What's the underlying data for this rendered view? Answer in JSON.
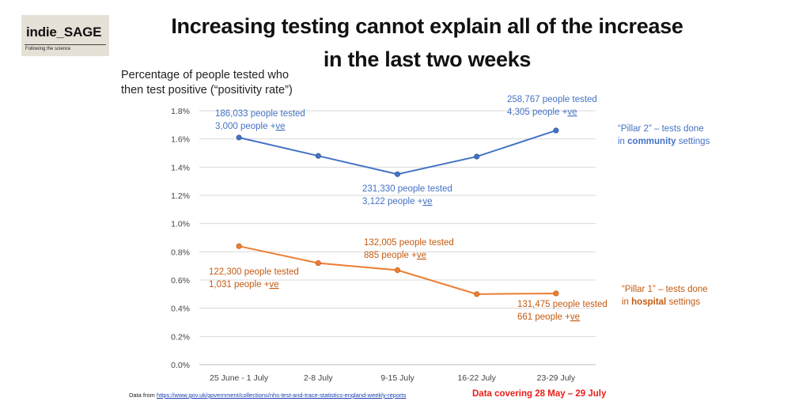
{
  "logo": {
    "name": "indie_SAGE",
    "tagline": "Following the science"
  },
  "title_line1": "Increasing testing cannot explain all of the increase",
  "title_line2": "in the last two weeks",
  "ylabel_line1": "Percentage of people tested who",
  "ylabel_line2": "then test positive (“positivity rate”)",
  "source_prefix": "Data from",
  "source_url": "https://www.gov.uk/government/collections/nhs-test-and-trace-statistics-england-weekly-reports",
  "coverage": "Data covering 28 May – 29 July",
  "colors": {
    "pillar2": "#4472c4",
    "pillar1": "#ed7d31",
    "pillar1_text": "#c55a11",
    "red": "#e8201a"
  },
  "chart_data": {
    "type": "line",
    "categories": [
      "25 June - 1 July",
      "2-8 July",
      "9-15 July",
      "16-22 July",
      "23-29 July"
    ],
    "ylim": [
      0,
      1.8
    ],
    "yticks": [
      "0.0%",
      "0.2%",
      "0.4%",
      "0.6%",
      "0.8%",
      "1.0%",
      "1.2%",
      "1.4%",
      "1.6%",
      "1.8%"
    ],
    "grid": true,
    "series": [
      {
        "key": "pillar2",
        "values": [
          1.61,
          1.48,
          1.35,
          1.475,
          1.66
        ],
        "label_part1": "“Pillar 2” – tests done",
        "label_part2": "in ",
        "label_bold": "community",
        "label_part3": " settings"
      },
      {
        "key": "pillar1",
        "values": [
          0.84,
          0.72,
          0.67,
          0.5,
          0.505
        ],
        "label_part1": "“Pillar 1” – tests done",
        "label_part2": "in ",
        "label_bold": "hospital",
        "label_part3": " settings"
      }
    ],
    "annotations": [
      {
        "series": "pillar2",
        "line1": "186,033 people tested",
        "line2a": "3,000 people +",
        "line2b": "ve"
      },
      {
        "series": "pillar2",
        "line1": "231,330 people tested",
        "line2a": "3,122 people +",
        "line2b": "ve"
      },
      {
        "series": "pillar2",
        "line1": "258,767 people tested",
        "line2a": "4,305 people +",
        "line2b": "ve"
      },
      {
        "series": "pillar1",
        "line1": "122,300 people tested",
        "line2a": "1,031 people +",
        "line2b": "ve"
      },
      {
        "series": "pillar1",
        "line1": "132,005 people tested",
        "line2a": "885 people +",
        "line2b": "ve"
      },
      {
        "series": "pillar1",
        "line1": "131,475 people tested",
        "line2a": "661 people +",
        "line2b": "ve"
      }
    ]
  }
}
